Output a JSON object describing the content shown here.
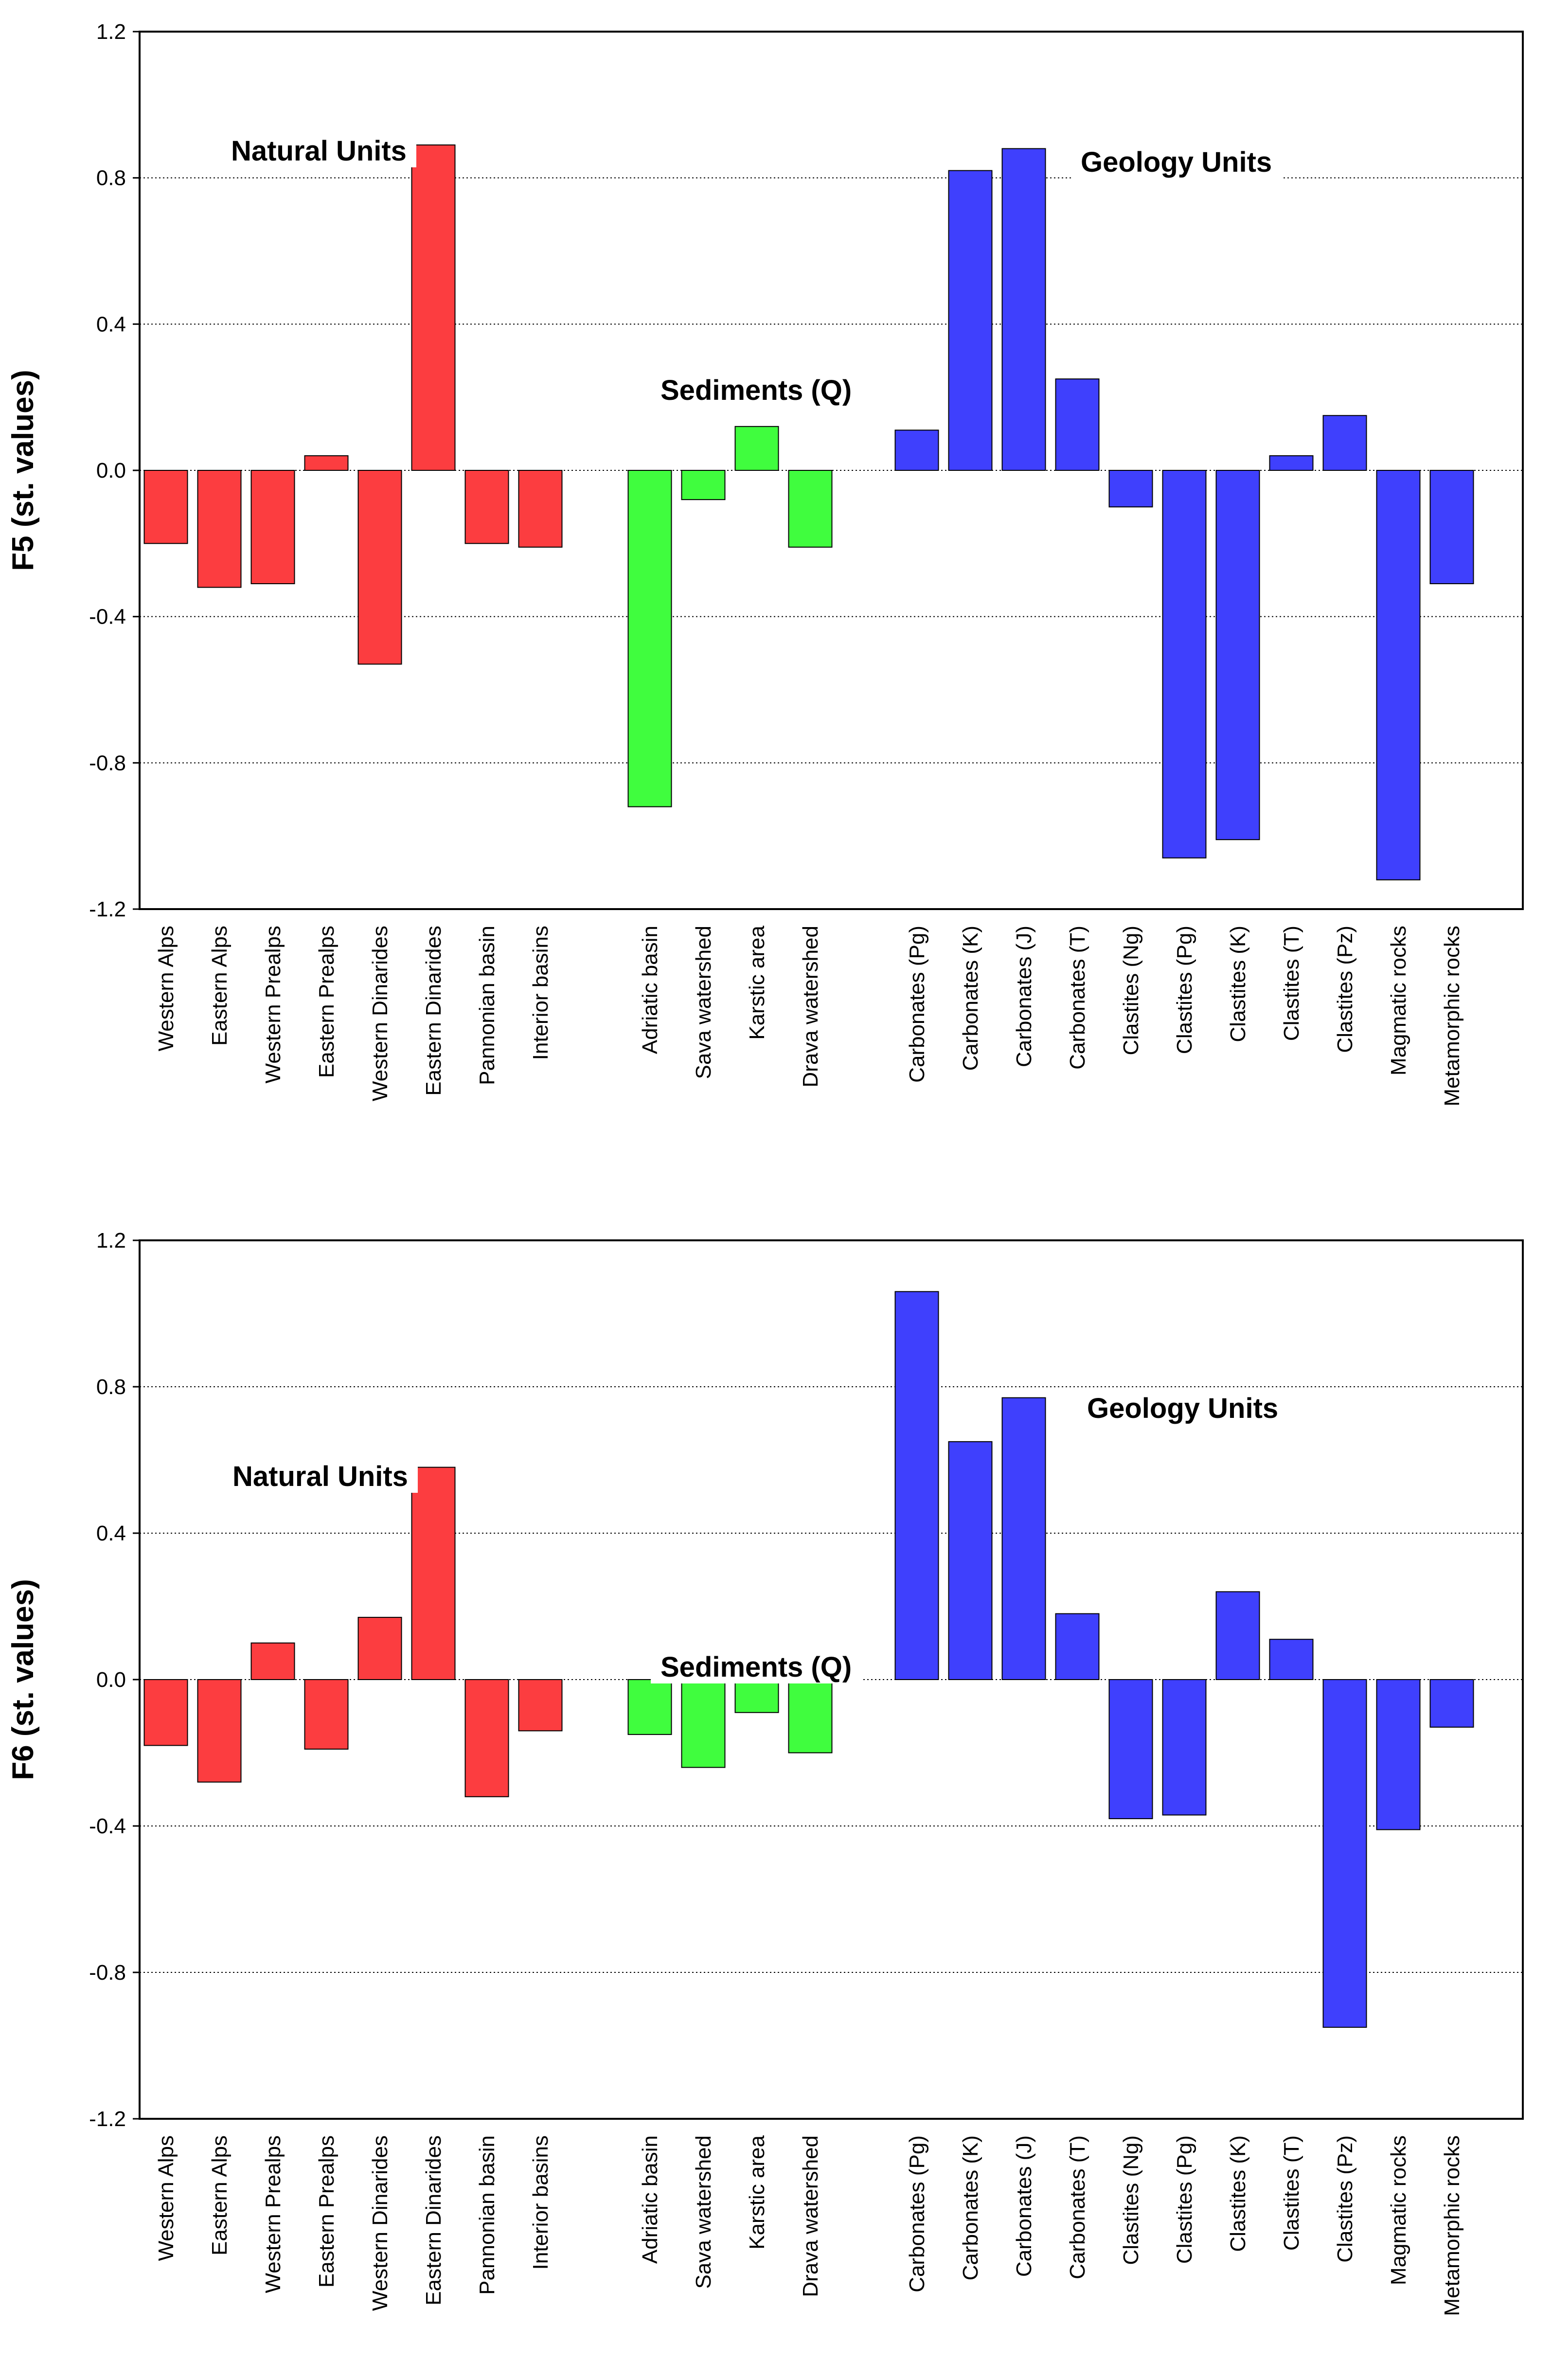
{
  "colors": {
    "natural": "#fc3d40",
    "sediments": "#40fd3e",
    "geology": "#3f40fd",
    "bar_outline": "#000000",
    "grid": "#000000"
  },
  "chart_data": [
    {
      "type": "bar",
      "title": "",
      "xlabel": "",
      "ylabel": "F5 (st. values)",
      "ylim": [
        -1.2,
        1.2
      ],
      "yticks": [
        "1.2",
        "0.8",
        "0.4",
        "0.0",
        "-0.4",
        "-0.8",
        "-1.2"
      ],
      "grid": "dotted horizontal",
      "groups": [
        {
          "name": "Natural Units",
          "color_key": "natural",
          "categories": [
            "Western Alps",
            "Eastern Alps",
            "Western Prealps",
            "Eastern Prealps",
            "Western Dinarides",
            "Eastern Dinarides",
            "Pannonian basin",
            "Interior basins"
          ],
          "values": [
            -0.2,
            -0.32,
            -0.31,
            0.04,
            -0.53,
            0.89,
            -0.2,
            -0.21
          ]
        },
        {
          "name": "Sediments (Q)",
          "color_key": "sediments",
          "categories": [
            "Adriatic basin",
            "Sava watershed",
            "Karstic area",
            "Drava watershed"
          ],
          "values": [
            -0.92,
            -0.08,
            0.12,
            -0.21
          ]
        },
        {
          "name": "Geology Units",
          "color_key": "geology",
          "categories": [
            "Carbonates (Pg)",
            "Carbonates (K)",
            "Carbonates (J)",
            "Carbonates (T)",
            "Clastites (Ng)",
            "Clastites (Pg)",
            "Clastites (K)",
            "Clastites (T)",
            "Clastites (Pz)",
            "Magmatic rocks",
            "Metamorphic rocks"
          ],
          "values": [
            0.11,
            0.82,
            0.88,
            0.25,
            -0.1,
            -1.06,
            -1.01,
            0.04,
            0.15,
            -1.12,
            -0.31
          ]
        }
      ]
    },
    {
      "type": "bar",
      "title": "",
      "xlabel": "",
      "ylabel": "F6 (st. values)",
      "ylim": [
        -1.2,
        1.2
      ],
      "yticks": [
        "1.2",
        "0.8",
        "0.4",
        "0.0",
        "-0.4",
        "-0.8",
        "-1.2"
      ],
      "grid": "dotted horizontal",
      "groups": [
        {
          "name": "Natural Units",
          "color_key": "natural",
          "categories": [
            "Western Alps",
            "Eastern Alps",
            "Western Prealps",
            "Eastern Prealps",
            "Western Dinarides",
            "Eastern Dinarides",
            "Pannonian basin",
            "Interior basins"
          ],
          "values": [
            -0.18,
            -0.28,
            0.1,
            -0.19,
            0.17,
            0.58,
            -0.32,
            -0.14
          ]
        },
        {
          "name": "Sediments (Q)",
          "color_key": "sediments",
          "categories": [
            "Adriatic basin",
            "Sava watershed",
            "Karstic area",
            "Drava watershed"
          ],
          "values": [
            -0.15,
            -0.24,
            -0.09,
            -0.2
          ]
        },
        {
          "name": "Geology Units",
          "color_key": "geology",
          "categories": [
            "Carbonates (Pg)",
            "Carbonates (K)",
            "Carbonates (J)",
            "Carbonates (T)",
            "Clastites (Ng)",
            "Clastites (Pg)",
            "Clastites (K)",
            "Clastites (T)",
            "Clastites (Pz)",
            "Magmatic rocks",
            "Metamorphic rocks"
          ],
          "values": [
            1.06,
            0.65,
            0.77,
            0.18,
            -0.38,
            -0.37,
            0.24,
            0.11,
            -0.95,
            -0.41,
            -0.13
          ]
        }
      ]
    }
  ]
}
